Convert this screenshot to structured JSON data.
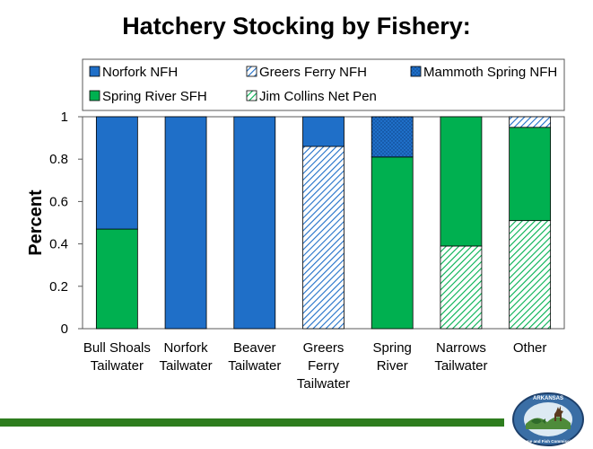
{
  "page": {
    "title": "Hatchery Stocking by Fishery:"
  },
  "chart_data": {
    "type": "bar",
    "stacked": true,
    "title": "",
    "xlabel": "",
    "ylabel": "Percent",
    "ylim": [
      0,
      1
    ],
    "yticks": [
      "0",
      "0.2",
      "0.4",
      "0.6",
      "0.8",
      "1"
    ],
    "ytick_values": [
      0,
      0.2,
      0.4,
      0.6,
      0.8,
      1
    ],
    "grid": false,
    "legend_position": "top",
    "categories": [
      [
        "Bull Shoals",
        "Tailwater"
      ],
      [
        "Norfork",
        "Tailwater"
      ],
      [
        "Beaver",
        "Tailwater"
      ],
      [
        "Greers",
        "Ferry",
        "Tailwater"
      ],
      [
        "Spring",
        "River"
      ],
      [
        "Narrows",
        "Tailwater"
      ],
      [
        "Other"
      ]
    ],
    "series": [
      {
        "name": "Jim Collins Net Pen",
        "color": "#00B050",
        "pattern": "hatch",
        "values": [
          0,
          0,
          0,
          0,
          0,
          0.39,
          0.51
        ]
      },
      {
        "name": "Spring River SFH",
        "color": "#00B050",
        "pattern": "solid",
        "values": [
          0.47,
          0,
          0,
          0,
          0.81,
          0.61,
          0.44
        ]
      },
      {
        "name": "Greers Ferry NFH",
        "color": "#1F6FC8",
        "pattern": "hatch",
        "values": [
          0,
          0,
          0,
          0.86,
          0,
          0,
          0.05
        ]
      },
      {
        "name": "Mammoth Spring NFH",
        "color": "#1F6FC8",
        "pattern": "dots",
        "values": [
          0,
          0,
          0,
          0,
          0.19,
          0,
          0
        ]
      },
      {
        "name": "Norfork NFH",
        "color": "#1F6FC8",
        "pattern": "solid",
        "values": [
          0.53,
          1,
          1,
          0.14,
          0,
          0,
          0
        ]
      }
    ],
    "legend_order": [
      "Norfork NFH",
      "Greers Ferry NFH",
      "Mammoth Spring NFH",
      "Spring River SFH",
      "Jim Collins Net Pen"
    ]
  },
  "footer": {
    "bar_color": "#2E7D1E"
  },
  "logo": {
    "icon": "agfc-logo-icon",
    "top_text": "ARKANSAS",
    "bottom_text": "Game and Fish Commission"
  }
}
